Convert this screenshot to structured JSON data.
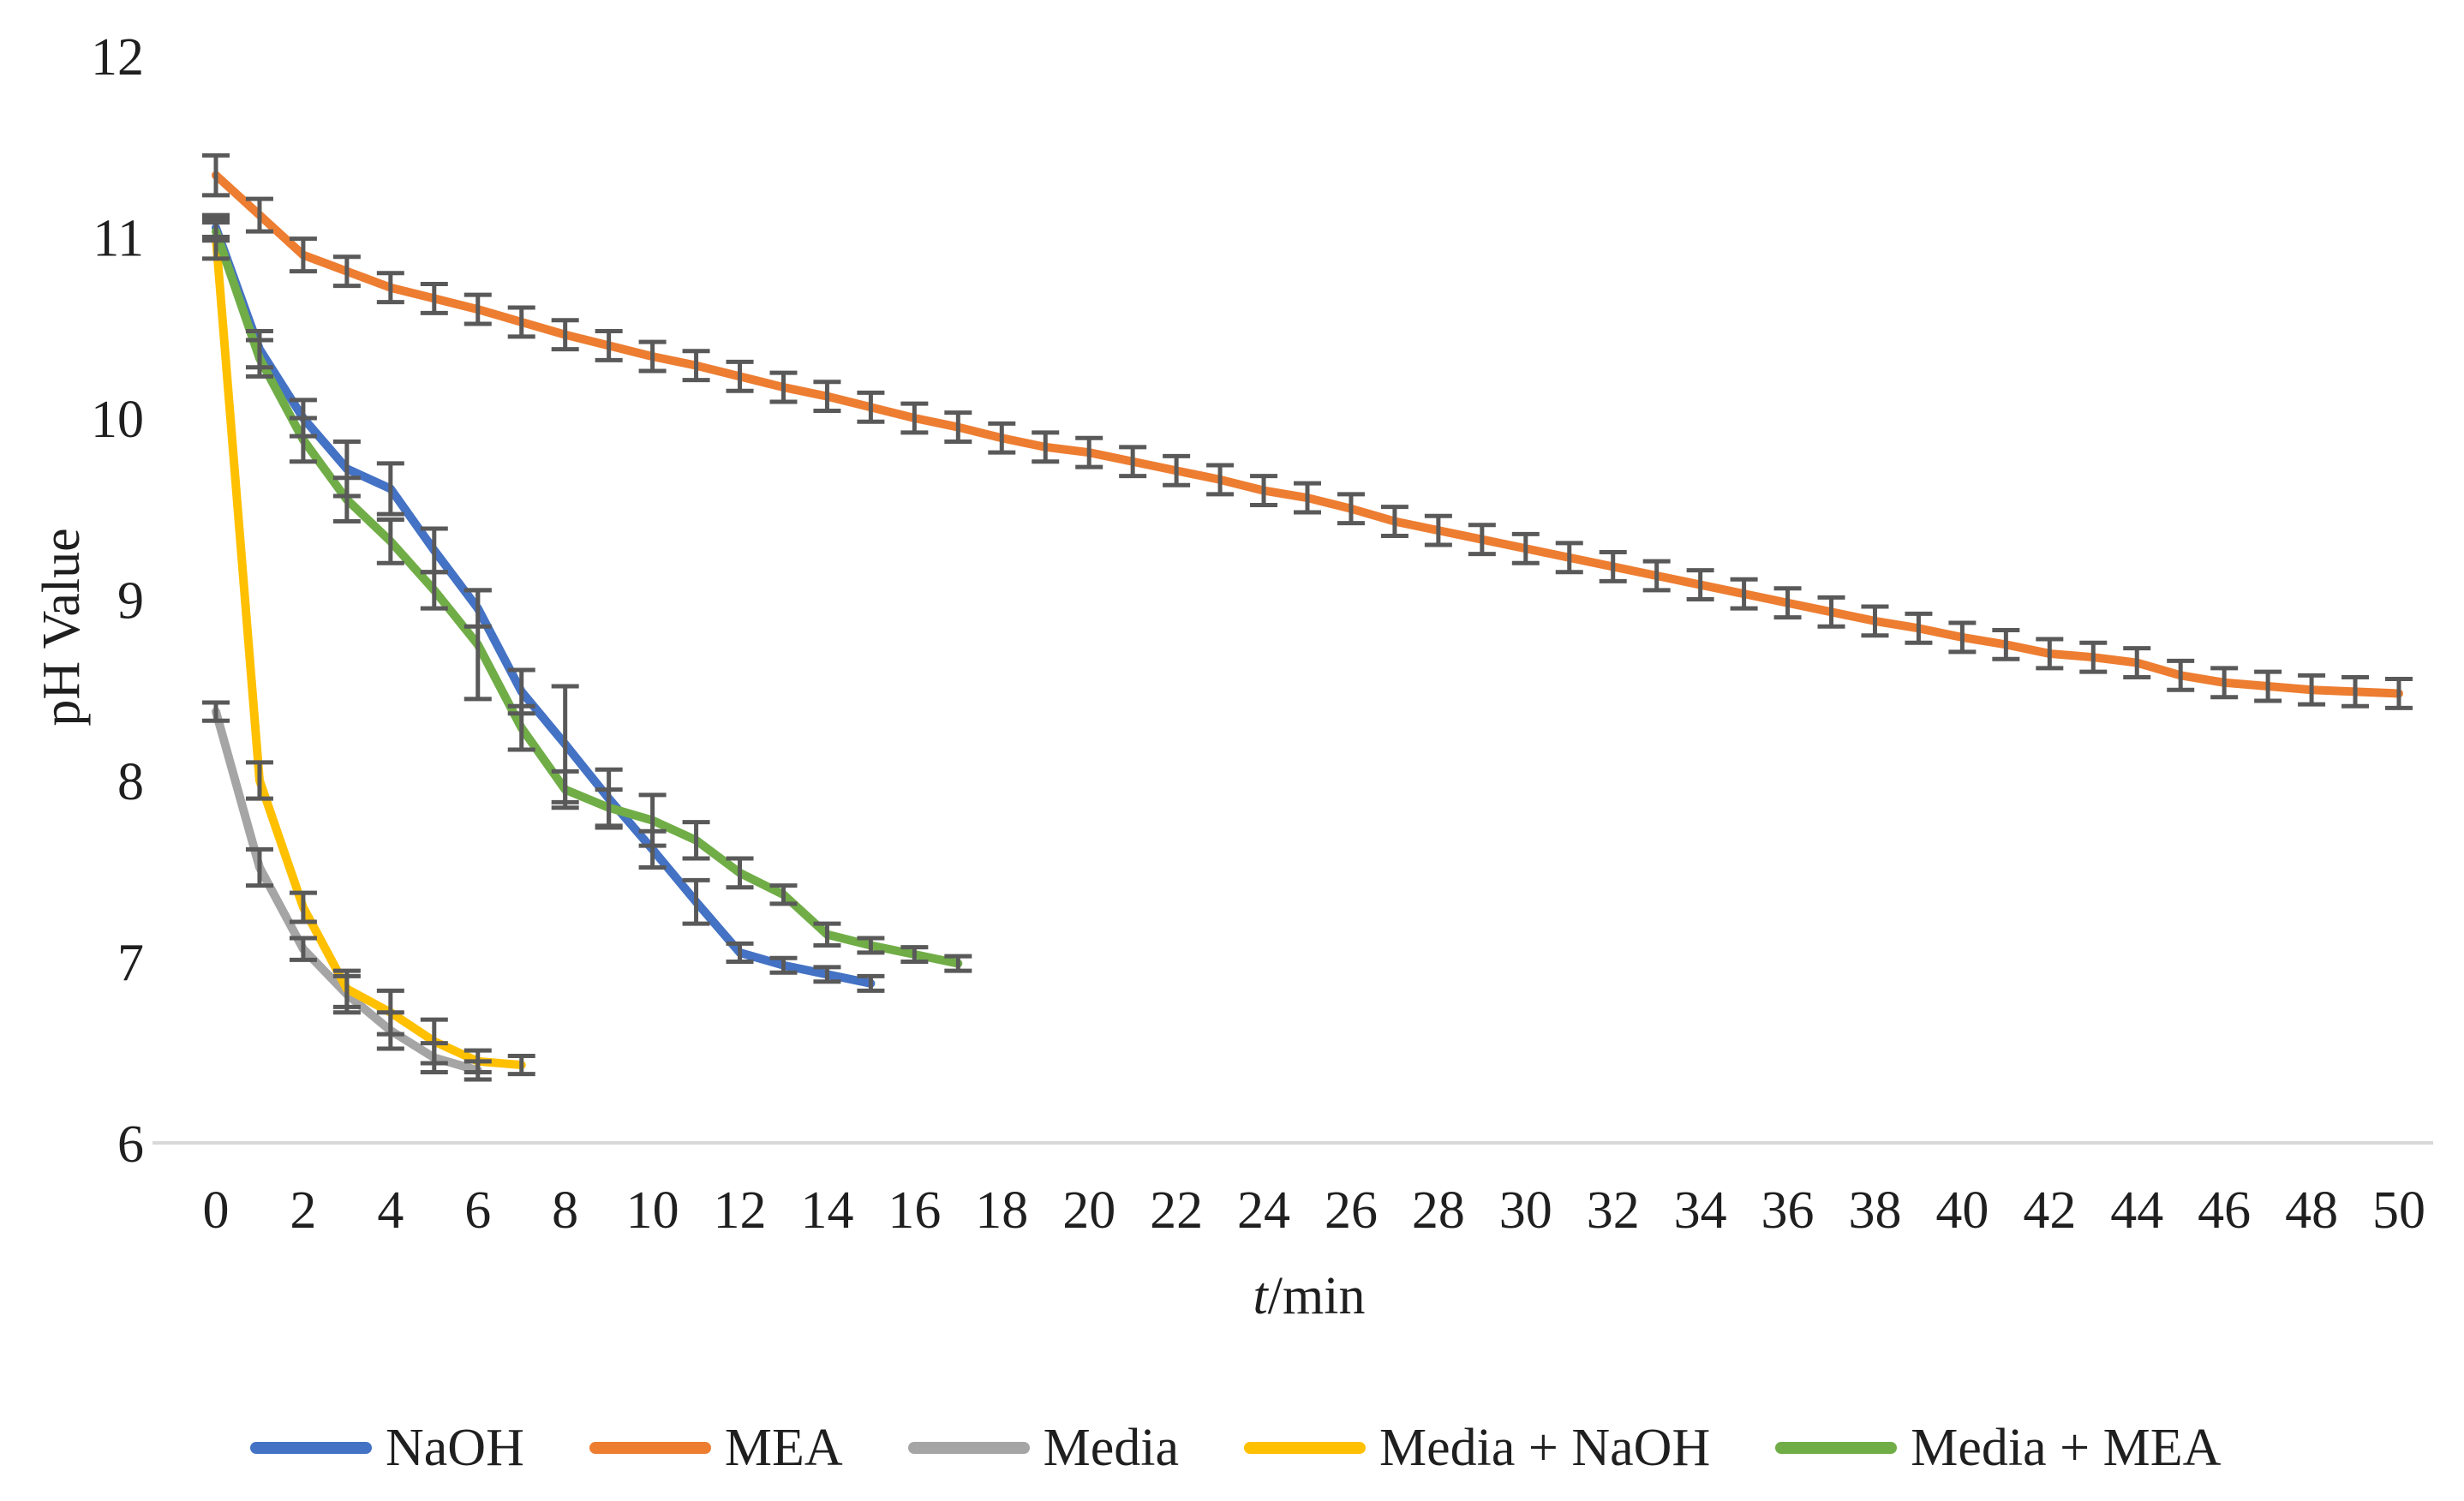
{
  "chart_data": {
    "type": "line",
    "title": "",
    "ylabel": "pH Value",
    "xlabel": "t/min",
    "xlabel_var": "t",
    "xlabel_rest": "/min",
    "xlim": [
      0,
      50
    ],
    "ylim": [
      6,
      12
    ],
    "x_ticks": [
      0,
      2,
      4,
      6,
      8,
      10,
      12,
      14,
      16,
      18,
      20,
      22,
      24,
      26,
      28,
      30,
      32,
      34,
      36,
      38,
      40,
      42,
      44,
      46,
      48,
      50
    ],
    "y_ticks": [
      6,
      7,
      8,
      9,
      10,
      11,
      12
    ],
    "grid": "off",
    "legend_position": "bottom",
    "error_bar_color": "#595959",
    "axis_line_color": "#d9d9d9",
    "series": [
      {
        "name": "NaOH",
        "color": "#4472C4",
        "x": [
          0,
          1,
          2,
          3,
          4,
          5,
          6,
          7,
          8,
          9,
          10,
          11,
          12,
          13,
          14,
          15
        ],
        "y": [
          11.05,
          10.38,
          10.0,
          9.72,
          9.61,
          9.27,
          8.95,
          8.49,
          8.2,
          7.9,
          7.62,
          7.33,
          7.05,
          6.98,
          6.93,
          6.88
        ],
        "err": [
          0.05,
          0.1,
          0.1,
          0.15,
          0.14,
          0.12,
          0.1,
          0.12,
          0.32,
          0.16,
          0.1,
          0.12,
          0.05,
          0.04,
          0.04,
          0.04
        ]
      },
      {
        "name": "MEA",
        "color": "#ED7D31",
        "x": [
          0,
          1,
          2,
          3,
          4,
          5,
          6,
          7,
          8,
          9,
          10,
          11,
          12,
          13,
          14,
          15,
          16,
          17,
          18,
          19,
          20,
          21,
          22,
          23,
          24,
          25,
          26,
          27,
          28,
          29,
          30,
          31,
          32,
          33,
          34,
          35,
          36,
          37,
          38,
          39,
          40,
          41,
          42,
          43,
          44,
          45,
          46,
          47,
          48,
          49,
          50
        ],
        "y": [
          11.34,
          11.12,
          10.9,
          10.81,
          10.72,
          10.66,
          10.6,
          10.53,
          10.46,
          10.4,
          10.34,
          10.29,
          10.23,
          10.17,
          10.12,
          10.06,
          10.0,
          9.95,
          9.89,
          9.84,
          9.81,
          9.76,
          9.71,
          9.66,
          9.6,
          9.56,
          9.5,
          9.43,
          9.38,
          9.33,
          9.28,
          9.23,
          9.18,
          9.13,
          9.08,
          9.03,
          8.98,
          8.93,
          8.88,
          8.84,
          8.79,
          8.75,
          8.7,
          8.68,
          8.65,
          8.58,
          8.54,
          8.52,
          8.5,
          8.49,
          8.48
        ],
        "err": [
          0.11,
          0.09,
          0.09,
          0.08,
          0.08,
          0.08,
          0.08,
          0.08,
          0.08,
          0.08,
          0.08,
          0.08,
          0.08,
          0.08,
          0.08,
          0.08,
          0.08,
          0.08,
          0.08,
          0.08,
          0.08,
          0.08,
          0.08,
          0.08,
          0.08,
          0.08,
          0.08,
          0.08,
          0.08,
          0.08,
          0.08,
          0.08,
          0.08,
          0.08,
          0.08,
          0.08,
          0.08,
          0.08,
          0.08,
          0.08,
          0.08,
          0.08,
          0.08,
          0.08,
          0.08,
          0.08,
          0.08,
          0.08,
          0.08,
          0.08,
          0.08
        ]
      },
      {
        "name": "Media",
        "color": "#A5A5A5",
        "x": [
          0,
          1,
          2,
          3,
          4,
          5,
          6
        ],
        "y": [
          8.38,
          7.52,
          7.07,
          6.82,
          6.62,
          6.47,
          6.4
        ],
        "err": [
          0.05,
          0.1,
          0.06,
          0.1,
          0.1,
          0.08,
          0.05
        ]
      },
      {
        "name": "Media + NaOH",
        "color": "#FFC000",
        "x": [
          0,
          1,
          2,
          3,
          4,
          5,
          6,
          7
        ],
        "y": [
          11.0,
          8.0,
          7.3,
          6.85,
          6.72,
          6.56,
          6.45,
          6.43
        ],
        "err": [
          0.12,
          0.1,
          0.08,
          0.1,
          0.12,
          0.12,
          0.06,
          0.05
        ]
      },
      {
        "name": "Media + MEA",
        "color": "#70AD47",
        "x": [
          0,
          1,
          2,
          3,
          4,
          5,
          6,
          7,
          8,
          9,
          10,
          11,
          12,
          13,
          14,
          15,
          16,
          17
        ],
        "y": [
          11.03,
          10.33,
          9.88,
          9.55,
          9.32,
          9.05,
          8.75,
          8.29,
          7.95,
          7.85,
          7.78,
          7.67,
          7.49,
          7.37,
          7.15,
          7.09,
          7.04,
          6.99
        ],
        "err": [
          0.05,
          0.1,
          0.12,
          0.12,
          0.12,
          0.1,
          0.3,
          0.12,
          0.1,
          0.1,
          0.14,
          0.1,
          0.08,
          0.05,
          0.06,
          0.04,
          0.04,
          0.04
        ]
      }
    ]
  }
}
